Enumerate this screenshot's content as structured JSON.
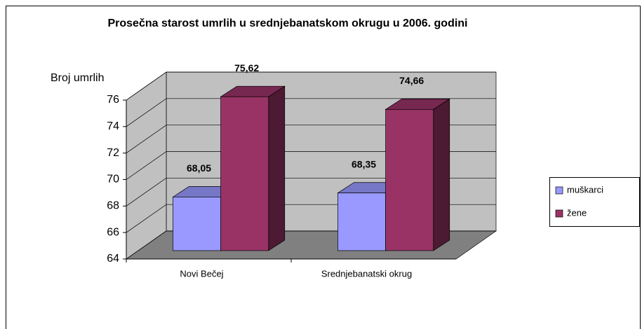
{
  "chart_data": {
    "type": "bar3d",
    "title": "Prosečna starost umrlih u srednjebanatskom okrugu u 2006. godini",
    "y_label": "Broj umrlih",
    "categories": [
      "Novi Bečej",
      "Srednjebanatski okrug"
    ],
    "series": [
      {
        "name": "muškarci",
        "color": "#9999ff",
        "values": [
          68.05,
          68.35
        ],
        "value_labels": [
          "68,05",
          "68,35"
        ]
      },
      {
        "name": "žene",
        "color": "#993366",
        "values": [
          75.62,
          74.66
        ],
        "value_labels": [
          "75,62",
          "74,66"
        ]
      }
    ],
    "ylim": [
      64,
      76
    ],
    "yticks": [
      64,
      66,
      68,
      70,
      72,
      74,
      76
    ],
    "grid": true,
    "legend": "right"
  }
}
